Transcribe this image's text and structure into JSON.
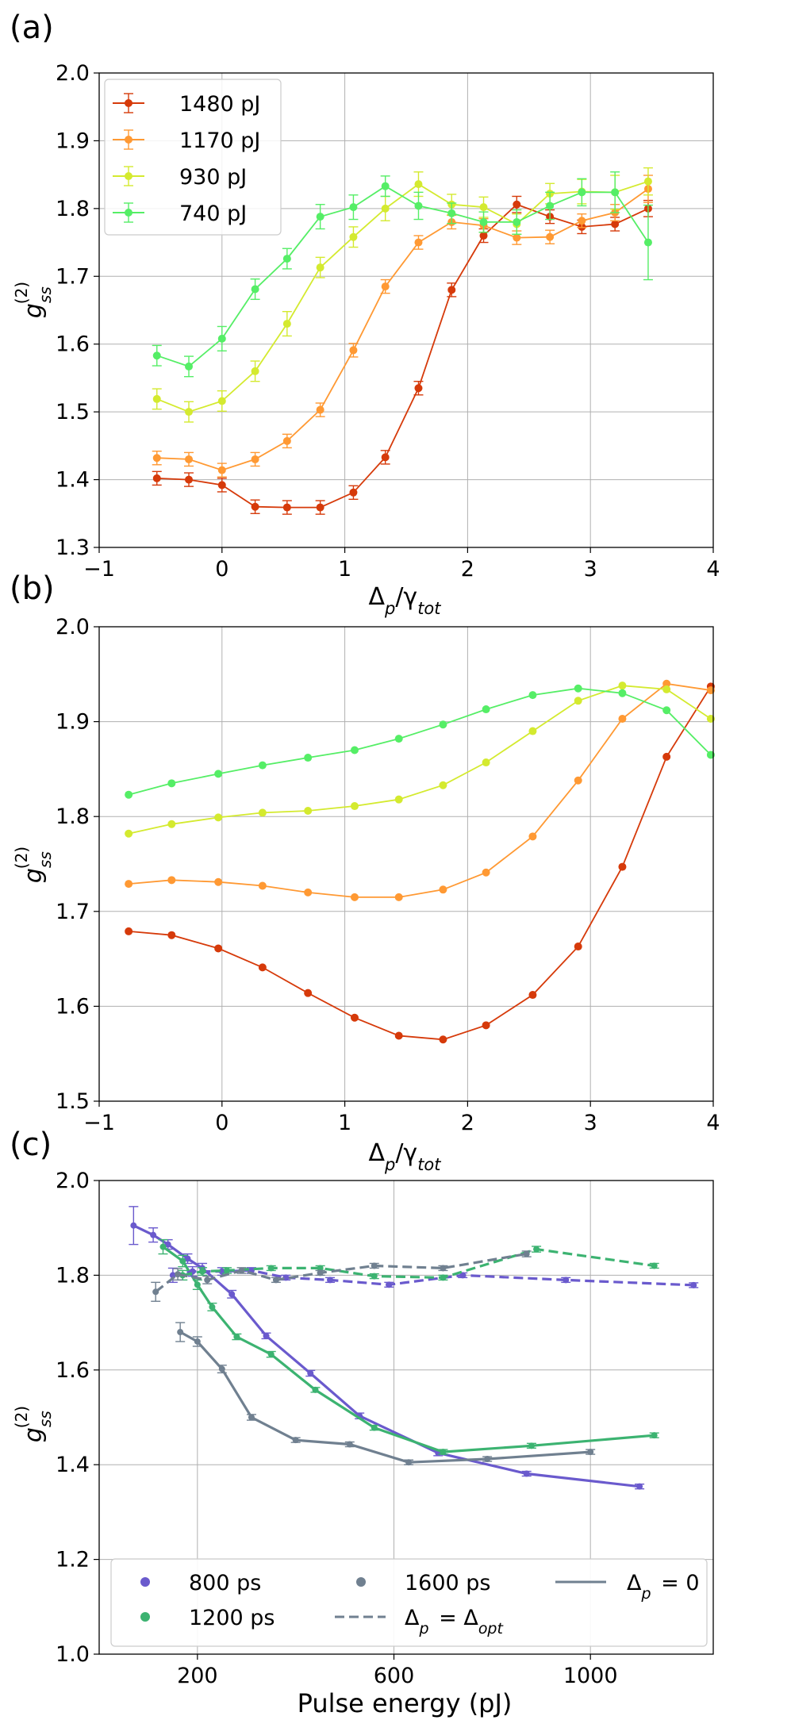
{
  "chart_data": [
    {
      "panel_label": "(a)",
      "type": "line",
      "title": "",
      "xlabel": "Δ_p/γ_tot",
      "ylabel": "g_ss^(2)",
      "xlim": [
        -1,
        4
      ],
      "ylim": [
        1.3,
        2.0
      ],
      "xticks": [
        -1,
        0,
        1,
        2,
        3,
        4
      ],
      "xtick_labels": [
        "−1",
        "0",
        "1",
        "2",
        "3",
        "4"
      ],
      "yticks": [
        1.3,
        1.4,
        1.5,
        1.6,
        1.7,
        1.8,
        1.9,
        2.0
      ],
      "ytick_labels": [
        "1.3",
        "1.4",
        "1.5",
        "1.6",
        "1.7",
        "1.8",
        "1.9",
        "2.0"
      ],
      "grid": true,
      "error_bars": true,
      "legend_position": "top-left",
      "series": [
        {
          "name": "1480 pJ",
          "color": "#d63a0a",
          "x": [
            -0.53,
            -0.27,
            0.0,
            0.27,
            0.53,
            0.8,
            1.07,
            1.33,
            1.6,
            1.87,
            2.13,
            2.4,
            2.67,
            2.93,
            3.2,
            3.47
          ],
          "y": [
            1.402,
            1.4,
            1.392,
            1.36,
            1.359,
            1.359,
            1.381,
            1.433,
            1.535,
            1.68,
            1.76,
            1.806,
            1.788,
            1.773,
            1.777,
            1.8
          ],
          "err": [
            0.01,
            0.01,
            0.01,
            0.01,
            0.01,
            0.01,
            0.01,
            0.01,
            0.01,
            0.01,
            0.01,
            0.012,
            0.01,
            0.01,
            0.01,
            0.012
          ]
        },
        {
          "name": "1170 pJ",
          "color": "#ff9933",
          "x": [
            -0.53,
            -0.27,
            0.0,
            0.27,
            0.53,
            0.8,
            1.07,
            1.33,
            1.6,
            1.87,
            2.13,
            2.4,
            2.67,
            2.93,
            3.2,
            3.47
          ],
          "y": [
            1.432,
            1.43,
            1.414,
            1.43,
            1.457,
            1.503,
            1.591,
            1.685,
            1.75,
            1.78,
            1.775,
            1.757,
            1.758,
            1.782,
            1.794,
            1.829
          ],
          "err": [
            0.01,
            0.01,
            0.01,
            0.01,
            0.01,
            0.01,
            0.01,
            0.01,
            0.01,
            0.01,
            0.01,
            0.01,
            0.01,
            0.01,
            0.012,
            0.02
          ]
        },
        {
          "name": "930 pJ",
          "color": "#d4ea2f",
          "x": [
            -0.53,
            -0.27,
            0.0,
            0.27,
            0.53,
            0.8,
            1.07,
            1.33,
            1.6,
            1.87,
            2.13,
            2.4,
            2.67,
            2.93,
            3.2,
            3.47
          ],
          "y": [
            1.519,
            1.5,
            1.516,
            1.56,
            1.63,
            1.713,
            1.758,
            1.8,
            1.836,
            1.806,
            1.802,
            1.777,
            1.822,
            1.825,
            1.824,
            1.84
          ],
          "err": [
            0.015,
            0.015,
            0.015,
            0.015,
            0.018,
            0.015,
            0.015,
            0.018,
            0.018,
            0.015,
            0.015,
            0.015,
            0.015,
            0.018,
            0.025,
            0.02
          ]
        },
        {
          "name": "740 pJ",
          "color": "#55ee66",
          "x": [
            -0.53,
            -0.27,
            0.0,
            0.27,
            0.53,
            0.8,
            1.07,
            1.33,
            1.6,
            1.87,
            2.13,
            2.4,
            2.67,
            2.93,
            3.2,
            3.47
          ],
          "y": [
            1.583,
            1.567,
            1.608,
            1.681,
            1.726,
            1.788,
            1.802,
            1.833,
            1.804,
            1.793,
            1.78,
            1.78,
            1.804,
            1.824,
            1.824,
            1.75
          ],
          "err": [
            0.015,
            0.015,
            0.018,
            0.015,
            0.015,
            0.018,
            0.018,
            0.015,
            0.02,
            0.015,
            0.015,
            0.018,
            0.02,
            0.02,
            0.03,
            0.055
          ]
        }
      ]
    },
    {
      "panel_label": "(b)",
      "type": "line",
      "title": "",
      "xlabel": "Δ_p/γ_tot",
      "ylabel": "g_ss^(2)",
      "xlim": [
        -1,
        4
      ],
      "ylim": [
        1.5,
        2.0
      ],
      "xticks": [
        -1,
        0,
        1,
        2,
        3,
        4
      ],
      "xtick_labels": [
        "−1",
        "0",
        "1",
        "2",
        "3",
        "4"
      ],
      "yticks": [
        1.5,
        1.6,
        1.7,
        1.8,
        1.9,
        2.0
      ],
      "ytick_labels": [
        "1.5",
        "1.6",
        "1.7",
        "1.8",
        "1.9",
        "2.0"
      ],
      "grid": true,
      "series": [
        {
          "name": "1480 pJ",
          "color": "#d63a0a",
          "x": [
            -0.76,
            -0.41,
            -0.03,
            0.33,
            0.7,
            1.08,
            1.44,
            1.8,
            2.15,
            2.53,
            2.9,
            3.26,
            3.62,
            3.98
          ],
          "y": [
            1.679,
            1.675,
            1.661,
            1.641,
            1.614,
            1.588,
            1.569,
            1.565,
            1.58,
            1.612,
            1.663,
            1.747,
            1.863,
            1.937
          ]
        },
        {
          "name": "1170 pJ",
          "color": "#ff9933",
          "x": [
            -0.76,
            -0.41,
            -0.03,
            0.33,
            0.7,
            1.08,
            1.44,
            1.8,
            2.15,
            2.53,
            2.9,
            3.26,
            3.62,
            3.98
          ],
          "y": [
            1.729,
            1.733,
            1.731,
            1.727,
            1.72,
            1.715,
            1.715,
            1.723,
            1.741,
            1.779,
            1.838,
            1.903,
            1.94,
            1.933
          ]
        },
        {
          "name": "930 pJ",
          "color": "#d4ea2f",
          "x": [
            -0.76,
            -0.41,
            -0.03,
            0.33,
            0.7,
            1.08,
            1.44,
            1.8,
            2.15,
            2.53,
            2.9,
            3.26,
            3.62,
            3.98
          ],
          "y": [
            1.782,
            1.792,
            1.799,
            1.804,
            1.806,
            1.811,
            1.818,
            1.833,
            1.857,
            1.89,
            1.922,
            1.938,
            1.934,
            1.903
          ]
        },
        {
          "name": "740 pJ",
          "color": "#55ee66",
          "x": [
            -0.76,
            -0.41,
            -0.03,
            0.33,
            0.7,
            1.08,
            1.44,
            1.8,
            2.15,
            2.53,
            2.9,
            3.26,
            3.62,
            3.98
          ],
          "y": [
            1.823,
            1.835,
            1.845,
            1.854,
            1.862,
            1.87,
            1.882,
            1.897,
            1.913,
            1.928,
            1.935,
            1.93,
            1.912,
            1.865
          ]
        }
      ]
    },
    {
      "panel_label": "(c)",
      "type": "line",
      "title": "",
      "xlabel": "Pulse energy (pJ)",
      "ylabel": "g_ss^(2)",
      "xlim": [
        0,
        1250
      ],
      "ylim": [
        1.0,
        2.0
      ],
      "xticks": [
        200,
        600,
        1000
      ],
      "xtick_labels": [
        "200",
        "600",
        "1000"
      ],
      "yticks": [
        1.0,
        1.2,
        1.4,
        1.6,
        1.8,
        2.0
      ],
      "ytick_labels": [
        "1.0",
        "1.2",
        "1.4",
        "1.6",
        "1.8",
        "2.0"
      ],
      "grid": true,
      "error_bars": true,
      "legend_position": "bottom",
      "legend": {
        "colors": [
          {
            "label": "800 ps",
            "color": "#6a5acd"
          },
          {
            "label": "1200 ps",
            "color": "#3cb371"
          },
          {
            "label": "1600 ps",
            "color": "#708090"
          }
        ],
        "styles": [
          {
            "label": "Δ_p = 0",
            "dash": "solid"
          },
          {
            "label": "Δ_p = Δ_opt",
            "dash": "dashed"
          }
        ]
      },
      "series": [
        {
          "name": "800 ps, Δ_p = 0",
          "color": "#6a5acd",
          "dash": "solid",
          "x": [
            70,
            110,
            140,
            180,
            210,
            270,
            340,
            430,
            530,
            690,
            870,
            1100
          ],
          "y": [
            1.905,
            1.885,
            1.865,
            1.835,
            1.815,
            1.76,
            1.672,
            1.593,
            1.503,
            1.425,
            1.381,
            1.354
          ],
          "err": [
            0.04,
            0.015,
            0.01,
            0.01,
            0.01,
            0.008,
            0.006,
            0.006,
            0.006,
            0.006,
            0.005,
            0.005
          ]
        },
        {
          "name": "1200 ps, Δ_p = 0",
          "color": "#3cb371",
          "dash": "solid",
          "x": [
            130,
            170,
            200,
            230,
            280,
            350,
            440,
            560,
            700,
            880,
            1130
          ],
          "y": [
            1.86,
            1.83,
            1.78,
            1.733,
            1.67,
            1.633,
            1.558,
            1.478,
            1.427,
            1.44,
            1.462
          ],
          "err": [
            0.015,
            0.012,
            0.01,
            0.008,
            0.006,
            0.006,
            0.005,
            0.005,
            0.005,
            0.005,
            0.005
          ]
        },
        {
          "name": "1600 ps, Δ_p = 0",
          "color": "#708090",
          "dash": "solid",
          "x": [
            165,
            200,
            250,
            310,
            400,
            510,
            630,
            790,
            1000
          ],
          "y": [
            1.68,
            1.66,
            1.602,
            1.5,
            1.452,
            1.443,
            1.405,
            1.412,
            1.427
          ],
          "err": [
            0.02,
            0.01,
            0.008,
            0.006,
            0.005,
            0.005,
            0.005,
            0.005,
            0.005
          ]
        },
        {
          "name": "800 ps, Δ_p = Δ_opt",
          "color": "#6a5acd",
          "dash": "dashed",
          "x": [
            150,
            190,
            250,
            310,
            380,
            470,
            590,
            740,
            950,
            1210
          ],
          "y": [
            1.8,
            1.808,
            1.808,
            1.81,
            1.795,
            1.79,
            1.78,
            1.8,
            1.79,
            1.779
          ],
          "err": [
            0.015,
            0.01,
            0.008,
            0.006,
            0.005,
            0.005,
            0.005,
            0.005,
            0.005,
            0.005
          ]
        },
        {
          "name": "1200 ps, Δ_p = Δ_opt",
          "color": "#3cb371",
          "dash": "dashed",
          "x": [
            170,
            210,
            260,
            350,
            450,
            560,
            700,
            890,
            1130
          ],
          "y": [
            1.8,
            1.808,
            1.81,
            1.815,
            1.815,
            1.798,
            1.795,
            1.855,
            1.82
          ],
          "err": [
            0.01,
            0.008,
            0.006,
            0.005,
            0.005,
            0.005,
            0.005,
            0.006,
            0.005
          ]
        },
        {
          "name": "1600 ps, Δ_p = Δ_opt",
          "color": "#708090",
          "dash": "dashed",
          "x": [
            115,
            160,
            220,
            290,
            360,
            450,
            560,
            700,
            870
          ],
          "y": [
            1.765,
            1.802,
            1.79,
            1.81,
            1.79,
            1.805,
            1.82,
            1.815,
            1.845
          ],
          "err": [
            0.02,
            0.012,
            0.008,
            0.006,
            0.005,
            0.005,
            0.005,
            0.005,
            0.006
          ]
        }
      ]
    }
  ]
}
